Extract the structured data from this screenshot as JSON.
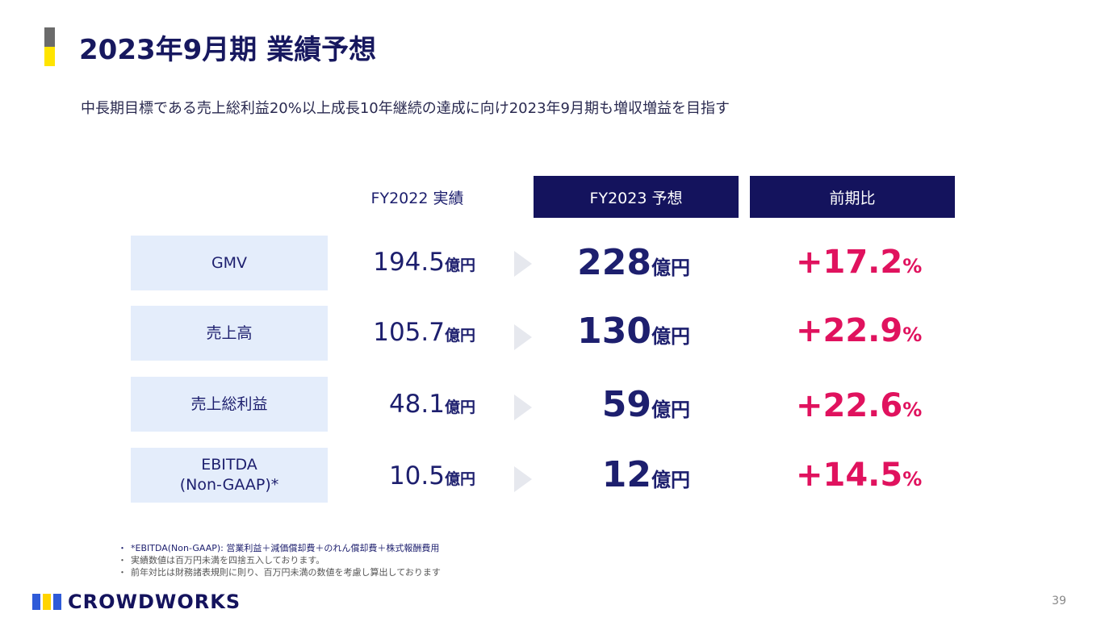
{
  "header": {
    "title": "2023年9月期 業績予想",
    "subtitle": "中長期目標である売上総利益20%以上成長10年継続の達成に向け2023年9月期も増収増益を目指す"
  },
  "table": {
    "col_prev": "FY2022 実績",
    "col_forecast": "FY2023 予想",
    "col_ratio": "前期比",
    "unit": "億円",
    "percent_sign": "%",
    "rows": [
      {
        "label": "GMV",
        "prev": "194.5",
        "forecast": "228",
        "ratio": "+17.2"
      },
      {
        "label": "売上高",
        "prev": "105.7",
        "forecast": "130",
        "ratio": "+22.9"
      },
      {
        "label": "売上総利益",
        "prev": "48.1",
        "forecast": "59",
        "ratio": "+22.6"
      },
      {
        "label": "EBITDA",
        "label2": "(Non-GAAP)*",
        "prev": "10.5",
        "forecast": "12",
        "ratio": "+14.5"
      }
    ]
  },
  "notes": [
    "*EBITDA(Non-GAAP): 営業利益＋減価償却費＋のれん償却費＋株式報酬費用",
    "実績数値は百万円未満を四捨五入しております。",
    "前年対比は財務諸表規則に則り、百万円未満の数値を考慮し算出しております"
  ],
  "footer": {
    "logo": "CROWDWORKS",
    "page": "39"
  },
  "colors": {
    "navy": "#14135d",
    "accent_pink": "#e0125e",
    "label_bg": "#e4edfb",
    "bar_gray": "#6b6b6b",
    "bar_yellow": "#ffe400"
  }
}
